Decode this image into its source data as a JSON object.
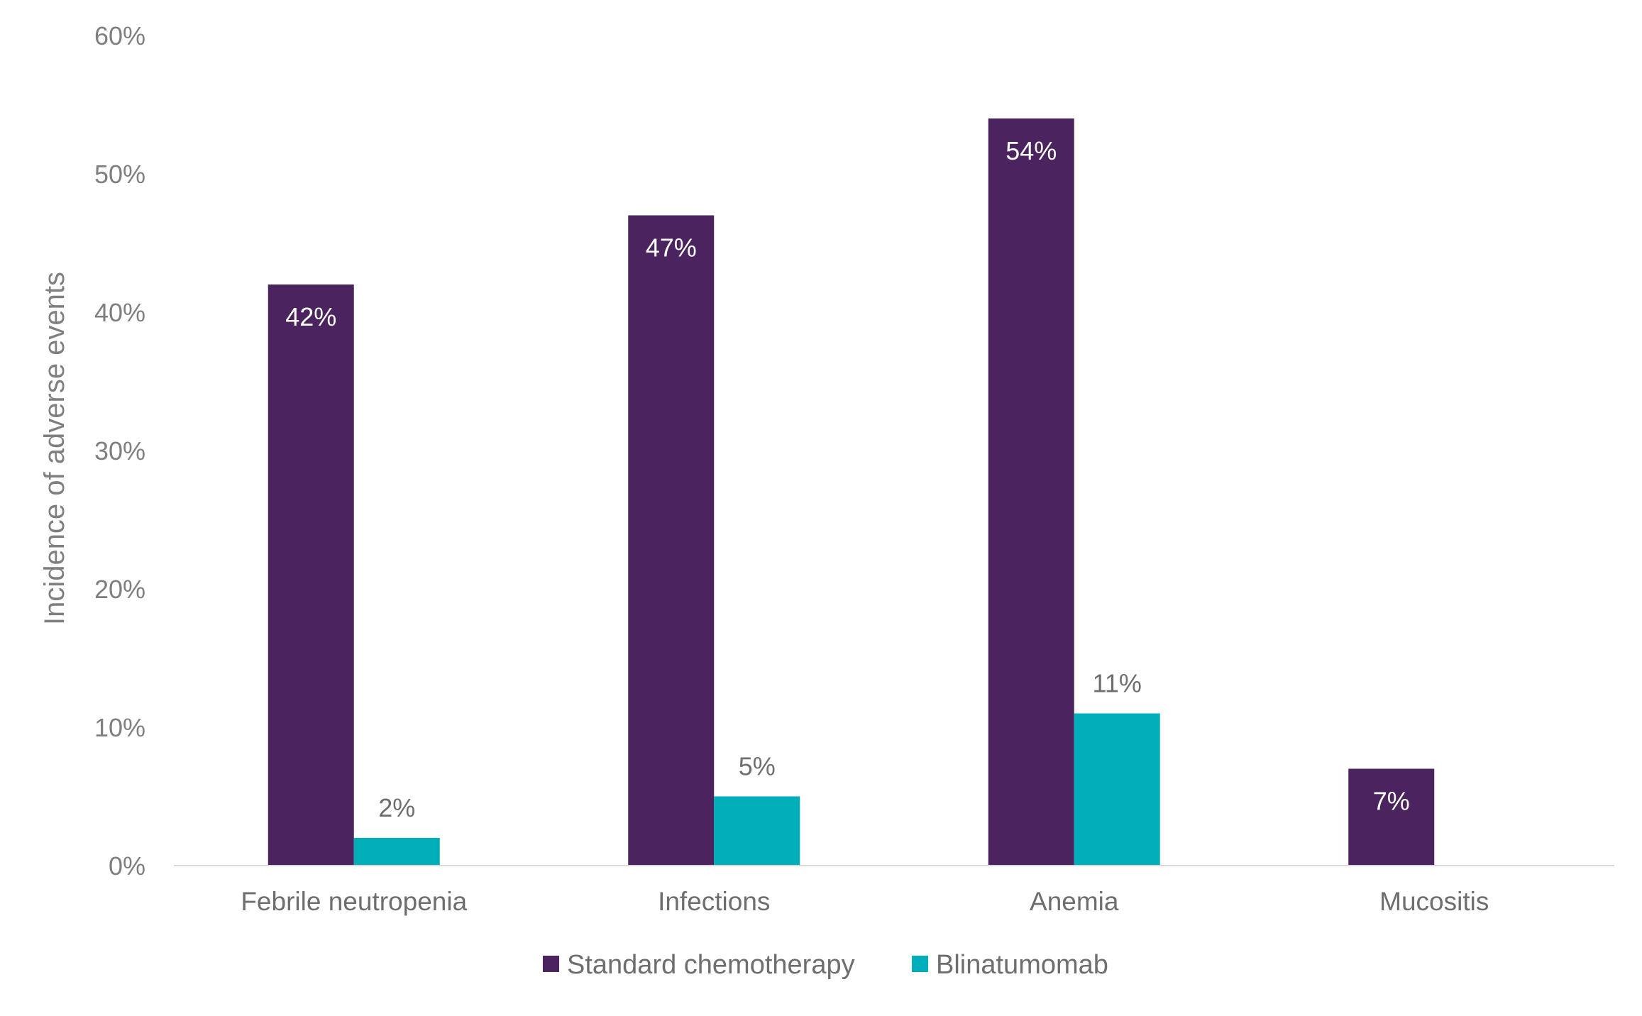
{
  "chart_data": {
    "type": "bar",
    "ylabel": "Incidence of adverse events",
    "xlabel": "",
    "title": "",
    "ylim": [
      0,
      60
    ],
    "y_ticks": [
      "0%",
      "10%",
      "20%",
      "30%",
      "40%",
      "50%",
      "60%"
    ],
    "y_tick_values": [
      0,
      10,
      20,
      30,
      40,
      50,
      60
    ],
    "categories": [
      "Febrile neutropenia",
      "Infections",
      "Anemia",
      "Mucositis"
    ],
    "series": [
      {
        "name": "Standard chemotherapy",
        "color": "#4a235f",
        "values": [
          42,
          47,
          54,
          7
        ],
        "labels": [
          "42%",
          "47%",
          "54%",
          "7%"
        ],
        "label_position": "inside-top"
      },
      {
        "name": "Blinatumomab",
        "color": "#00aeb9",
        "values": [
          2,
          5,
          11,
          null
        ],
        "labels": [
          "2%",
          "5%",
          "11%",
          ""
        ],
        "label_position": "outside-top"
      }
    ],
    "grid": false,
    "legend": "bottom-center"
  }
}
